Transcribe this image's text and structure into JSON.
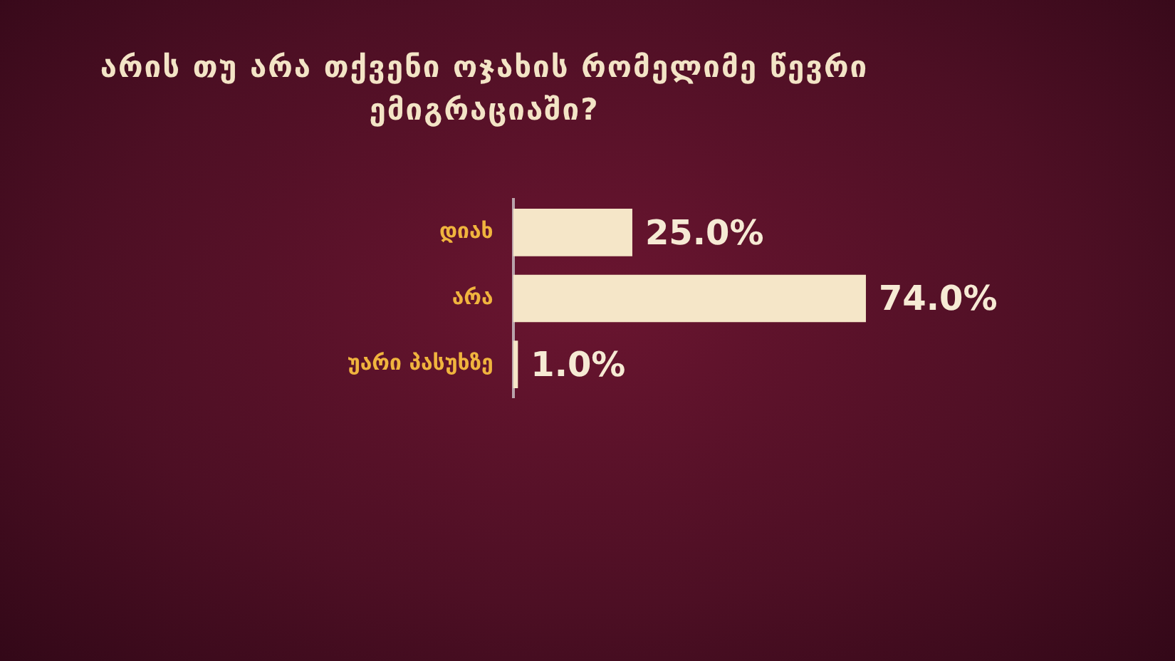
{
  "chart_data": {
    "type": "bar",
    "orientation": "horizontal",
    "title": "არის თუ არა თქვენი ოჯახის რომელიმე  წევრი ემიგრაციაში?",
    "categories": [
      "დიახ",
      "არა",
      "უარი პასუხზე"
    ],
    "values": [
      25.0,
      74.0,
      1.0
    ],
    "value_labels": [
      "25.0%",
      "74.0%",
      "1.0%"
    ],
    "color": "#f5e6c8"
  }
}
